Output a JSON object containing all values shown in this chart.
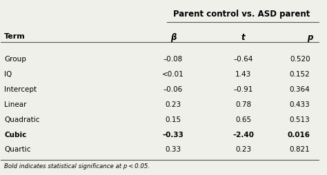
{
  "title": "Parent control vs. ASD parent",
  "col_header_label": "Term",
  "columns": [
    "β",
    "t",
    "p"
  ],
  "rows": [
    {
      "term": "Group",
      "beta": "–0.08",
      "t": "–0.64",
      "p": "0.520",
      "bold": false
    },
    {
      "term": "IQ",
      "beta": "<0.01",
      "t": "1.43",
      "p": "0.152",
      "bold": false
    },
    {
      "term": "Intercept",
      "beta": "–0.06",
      "t": "–0.91",
      "p": "0.364",
      "bold": false
    },
    {
      "term": "Linear",
      "beta": "0.23",
      "t": "0.78",
      "p": "0.433",
      "bold": false
    },
    {
      "term": "Quadratic",
      "beta": "0.15",
      "t": "0.65",
      "p": "0.513",
      "bold": false
    },
    {
      "term": "Cubic",
      "beta": "–0.33",
      "t": "–2.40",
      "p": "0.016",
      "bold": true
    },
    {
      "term": "Quartic",
      "beta": "0.33",
      "t": "0.23",
      "p": "0.821",
      "bold": false
    }
  ],
  "footnote": "Bold indicates statistical significance at p < 0.05.",
  "bg_color": "#f0f0eb",
  "line_color": "#555555"
}
